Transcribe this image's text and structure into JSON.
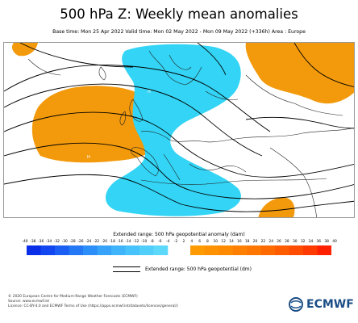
{
  "title": "500 hPa Z: Weekly mean anomalies",
  "subtitle": "Base time: Mon 25 Apr 2022 Valid time: Mon 02 May 2022 - Mon 09 May 2022 (+336h) Area : Europe",
  "colorbar": {
    "title": "Extended range: 500 hPa geopotential anomaly (dam)",
    "ticks": [
      "-40",
      "-38",
      "-36",
      "-34",
      "-32",
      "-30",
      "-28",
      "-26",
      "-24",
      "-22",
      "-20",
      "-18",
      "-16",
      "-14",
      "-12",
      "-10",
      "-8",
      "-6",
      "-4",
      "-2",
      "2",
      "4",
      "6",
      "8",
      "10",
      "12",
      "14",
      "16",
      "18",
      "20",
      "22",
      "24",
      "26",
      "28",
      "30",
      "32",
      "34",
      "36",
      "38",
      "40"
    ],
    "negative_colors": [
      "#0a2ee8",
      "#1246f0",
      "#1a5ef4",
      "#2478f6",
      "#2c8ef8",
      "#36a2f9",
      "#3fb4fa",
      "#48c2fa",
      "#52cefb",
      "#5cd8fb"
    ],
    "positive_colors": [
      "#ff9a00",
      "#ff9200",
      "#ff8a00",
      "#ff8000",
      "#ff7600",
      "#ff6a00",
      "#ff5c00",
      "#ff4c00",
      "#ff3a00",
      "#ff2000"
    ]
  },
  "contour_legend": "Extended range: 500 hPa geopotential (dm)",
  "map": {
    "anomaly_colors": {
      "negative": "#33d4f5",
      "positive": "#f39a0c"
    },
    "marker_labels": [
      "H",
      "H",
      "L"
    ]
  },
  "footer": {
    "line1": "© 2020 European Centre for Medium-Range Weather Forecasts (ECMWF)",
    "line2": "Source: www.ecmwf.int",
    "line3": "Licence: CC-BY-4.0 and ECMWF Terms of Use (https://apps.ecmwf.int/datasets/licences/general/)"
  },
  "logo": {
    "text": "ECMWF",
    "color": "#1b4e86",
    "icon": "ecmwf-logo-icon"
  }
}
